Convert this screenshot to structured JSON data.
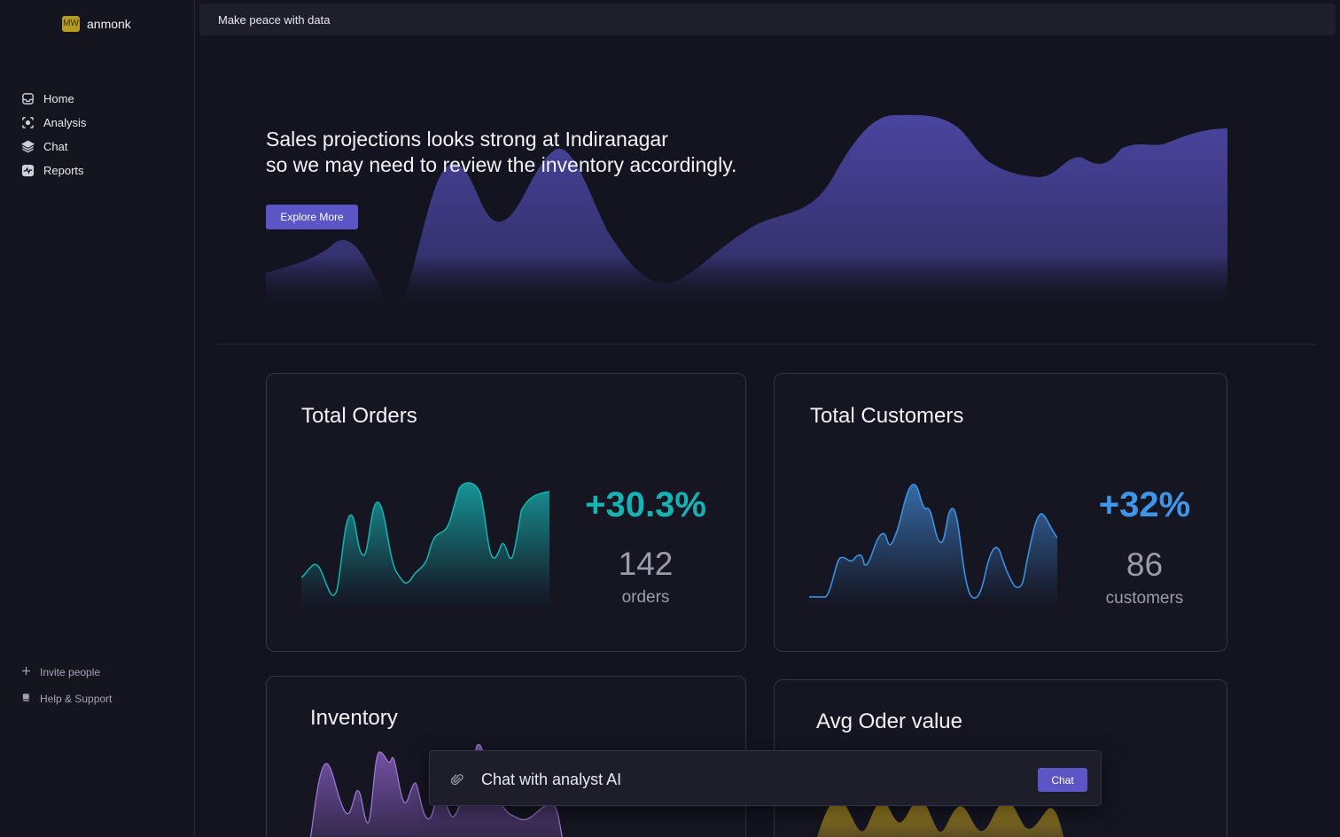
{
  "brand": {
    "initials": "MW",
    "name": "anmonk",
    "avatar_color": "#b39b24"
  },
  "sidebar": {
    "items": [
      {
        "label": "Home",
        "icon": "inbox-icon"
      },
      {
        "label": "Analysis",
        "icon": "focus-icon"
      },
      {
        "label": "Chat",
        "icon": "layers-icon"
      },
      {
        "label": "Reports",
        "icon": "activity-icon"
      }
    ],
    "bottom": [
      {
        "label": "Invite people",
        "icon": "plus-icon"
      },
      {
        "label": "Help & Support",
        "icon": "book-icon"
      }
    ]
  },
  "topbar": {
    "title": "Make peace with data"
  },
  "hero": {
    "line1": "Sales projections looks strong at Indiranagar",
    "line2": "so we may need to review the inventory accordingly.",
    "button": "Explore More",
    "color": "#4a45a0"
  },
  "cards": {
    "orders": {
      "title": "Total Orders",
      "change": "+30.3%",
      "value": "142",
      "unit": "orders",
      "color": "#17b3b3"
    },
    "customers": {
      "title": "Total Customers",
      "change": "+32%",
      "value": "86",
      "unit": "customers",
      "color": "#3f95e8"
    },
    "inventory": {
      "title": "Inventory",
      "color": "#8a5fc4"
    },
    "avg_order": {
      "title": "Avg Oder value",
      "color": "#c9a320"
    }
  },
  "chat": {
    "placeholder": "Chat with analyst AI",
    "button": "Chat",
    "icon": "paperclip-icon"
  },
  "colors": {
    "accent": "#5b55c6",
    "background": "#13141f",
    "sidebar": "#14151f"
  }
}
